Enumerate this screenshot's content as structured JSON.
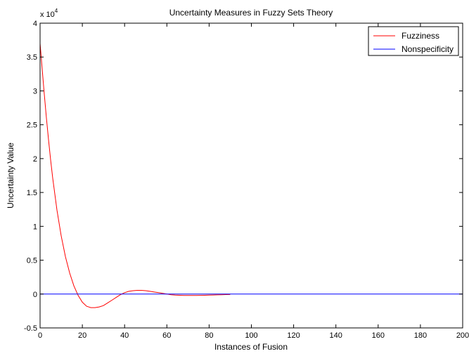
{
  "chart_data": {
    "type": "line",
    "title": "Uncertainty Measures in Fuzzy Sets Theory",
    "xlabel": "Instances of Fusion",
    "ylabel": "Uncertainty Value",
    "exponent_label": "x 10",
    "exponent_power": "4",
    "xlim": [
      0,
      200
    ],
    "ylim": [
      -0.5,
      4
    ],
    "y_scale_factor": 10000,
    "x_ticks": [
      "0",
      "20",
      "40",
      "60",
      "80",
      "100",
      "120",
      "140",
      "160",
      "180",
      "200"
    ],
    "y_ticks": [
      "-0.5",
      "0",
      "0.5",
      "1",
      "1.5",
      "2",
      "2.5",
      "3",
      "3.5",
      "4"
    ],
    "grid": false,
    "legend_position": "top-right",
    "series": [
      {
        "name": "Fuzziness",
        "color": "#ff0000",
        "x": [
          0,
          1,
          2,
          3,
          4,
          5,
          6,
          8,
          10,
          12,
          14,
          16,
          18,
          20,
          22,
          24,
          26,
          28,
          30,
          32,
          34,
          36,
          38,
          40,
          42,
          44,
          46,
          48,
          50,
          52,
          54,
          56,
          58,
          60,
          62,
          64,
          66,
          68,
          70,
          72,
          74,
          76,
          78,
          80,
          82,
          84,
          86,
          88,
          90
        ],
        "y": [
          3.7,
          3.32,
          2.95,
          2.6,
          2.28,
          1.98,
          1.71,
          1.24,
          0.86,
          0.55,
          0.31,
          0.12,
          -0.02,
          -0.12,
          -0.18,
          -0.2,
          -0.2,
          -0.19,
          -0.17,
          -0.13,
          -0.09,
          -0.05,
          -0.01,
          0.02,
          0.04,
          0.05,
          0.055,
          0.055,
          0.05,
          0.04,
          0.03,
          0.02,
          0.01,
          0.0,
          -0.01,
          -0.015,
          -0.018,
          -0.02,
          -0.02,
          -0.02,
          -0.02,
          -0.019,
          -0.018,
          -0.016,
          -0.014,
          -0.012,
          -0.01,
          -0.008,
          -0.006
        ]
      },
      {
        "name": "Nonspecificity",
        "color": "#0000ff",
        "x": [
          0,
          200
        ],
        "y": [
          0,
          0
        ]
      }
    ]
  }
}
